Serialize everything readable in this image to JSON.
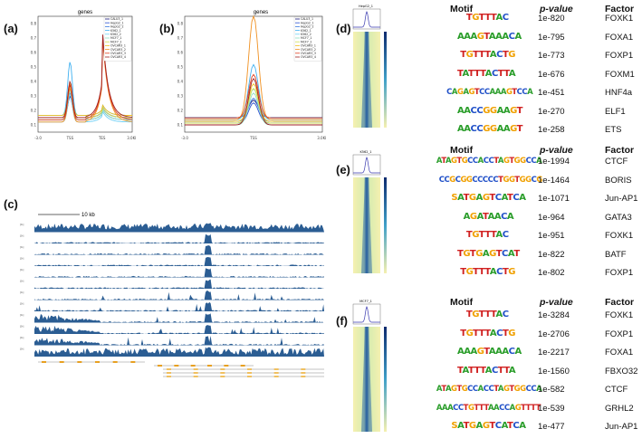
{
  "panels": {
    "a": {
      "letter": "(a)",
      "title": "genes",
      "xticks": [
        "-3.0",
        "TSS",
        "TES",
        "3.0Kb"
      ]
    },
    "b": {
      "letter": "(b)",
      "title": "genes",
      "xticks": [
        "-3.0",
        "TSS",
        "3.0Kb"
      ]
    },
    "c": {
      "letter": "(c)",
      "scalebar": "10 kb"
    },
    "d": {
      "letter": "(d)",
      "heatmap_title": "HepG2_1"
    },
    "e": {
      "letter": "(e)",
      "heatmap_title": "K562_1"
    },
    "f": {
      "letter": "(f)",
      "heatmap_title": "MCF7_1"
    }
  },
  "legend": [
    "CALU3_1",
    "HepG2_1",
    "HepG2_2",
    "K562_1",
    "K562_2",
    "MCF7_1",
    "MCF7_2",
    "OVCAR3_1",
    "OVCAR3_2",
    "OVCAR3_3",
    "OVCAR3_4"
  ],
  "legend_colors": [
    "#1a1a7a",
    "#2a4fd0",
    "#3a7ae0",
    "#3fb0f0",
    "#6fd0f5",
    "#90e0c0",
    "#d0e050",
    "#f0c020",
    "#f09020",
    "#e04020",
    "#a02020"
  ],
  "headers": {
    "motif": "Motif",
    "pvalue": "p-value",
    "factor": "Factor"
  },
  "tables": {
    "d": [
      {
        "logo": "TGTTTAC",
        "p": "1e-820",
        "factor": "FOXK1"
      },
      {
        "logo": "AAAGTAAACA",
        "p": "1e-795",
        "factor": "FOXA1"
      },
      {
        "logo": "TGTTTACTG",
        "p": "1e-773",
        "factor": "FOXP1"
      },
      {
        "logo": "TATTTACTTA",
        "p": "1e-676",
        "factor": "FOXM1"
      },
      {
        "logo": "CAGAGTCCAAAGTCCA",
        "p": "1e-451",
        "factor": "HNF4a"
      },
      {
        "logo": "AACCGGAAGT",
        "p": "1e-270",
        "factor": "ELF1"
      },
      {
        "logo": "AACCGGAAGT",
        "p": "1e-258",
        "factor": "ETS"
      }
    ],
    "e": [
      {
        "logo": "ATAGTGCCACCTAGTGGCCA",
        "p": "1e-1994",
        "factor": "CTCF"
      },
      {
        "logo": "CCGCGGCCCCCTGGTGGCG",
        "p": "1e-1464",
        "factor": "BORIS"
      },
      {
        "logo": "SATGAGTCATCA",
        "p": "1e-1071",
        "factor": "Jun-AP1"
      },
      {
        "logo": "AGATAACA",
        "p": "1e-964",
        "factor": "GATA3"
      },
      {
        "logo": "TGTTTAC",
        "p": "1e-951",
        "factor": "FOXK1"
      },
      {
        "logo": "TGTGAGTCAT",
        "p": "1e-822",
        "factor": "BATF"
      },
      {
        "logo": "TGTTTACTG",
        "p": "1e-802",
        "factor": "FOXP1"
      }
    ],
    "f": [
      {
        "logo": "TGTTTAC",
        "p": "1e-3284",
        "factor": "FOXK1"
      },
      {
        "logo": "TGTTTACTG",
        "p": "1e-2706",
        "factor": "FOXP1"
      },
      {
        "logo": "AAAGTAAACA",
        "p": "1e-2217",
        "factor": "FOXA1"
      },
      {
        "logo": "TATTTACTTA",
        "p": "1e-1560",
        "factor": "FBXO32"
      },
      {
        "logo": "ATAGTGCCACCTAGTGGCCA",
        "p": "1e-582",
        "factor": "CTCF"
      },
      {
        "logo": "AAACCTGTTTAACCAGTTTT",
        "p": "1e-539",
        "factor": "GRHL2"
      },
      {
        "logo": "SATGAGTCATCA",
        "p": "1e-477",
        "factor": "Jun-AP1"
      }
    ]
  },
  "logo_colors": {
    "A": "#2a9d2a",
    "C": "#2050c8",
    "G": "#f0a000",
    "T": "#d02020",
    "S": "#f0a000"
  }
}
